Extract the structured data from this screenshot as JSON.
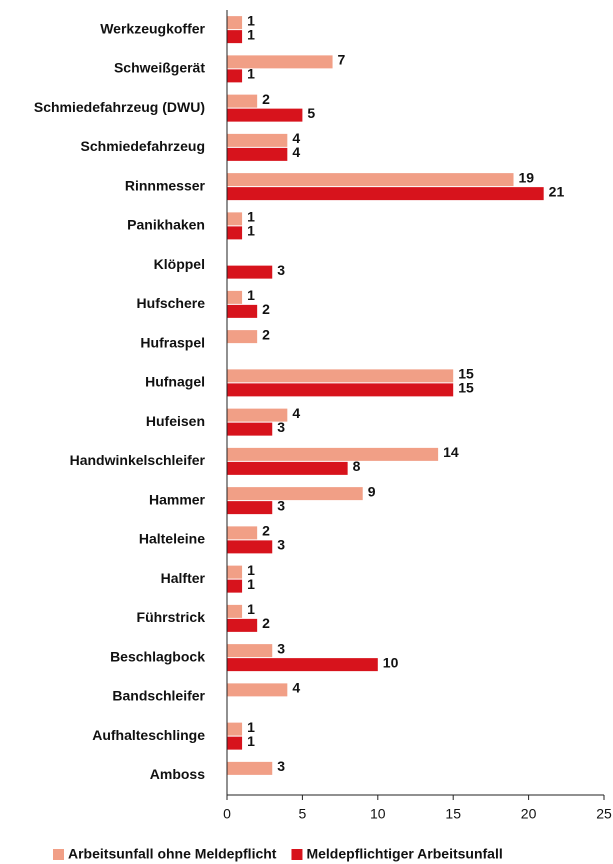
{
  "chart_data": {
    "type": "hbar",
    "categories": [
      "Werkzeugkoffer",
      "Schweißgerät",
      "Schmiedefahrzeug (DWU)",
      "Schmiedefahrzeug",
      "Rinnmesser",
      "Panikhaken",
      "Klöppel",
      "Hufschere",
      "Hufraspel",
      "Hufnagel",
      "Hufeisen",
      "Handwinkelschleifer",
      "Hammer",
      "Halteleine",
      "Halfter",
      "Führstrick",
      "Beschlagbock",
      "Bandschleifer",
      "Aufhalteschlinge",
      "Amboss"
    ],
    "series": [
      {
        "name": "Arbeitsunfall ohne Meldepflicht",
        "color": "#f19f86",
        "values": [
          1,
          7,
          2,
          4,
          19,
          1,
          null,
          1,
          2,
          15,
          4,
          14,
          9,
          2,
          1,
          1,
          3,
          4,
          1,
          3
        ]
      },
      {
        "name": "Meldepflichtiger Arbeitsunfall",
        "color": "#d7131c",
        "values": [
          1,
          1,
          5,
          4,
          21,
          1,
          3,
          2,
          null,
          15,
          3,
          8,
          3,
          3,
          1,
          2,
          10,
          null,
          1,
          null
        ]
      }
    ],
    "xlim": [
      0,
      25
    ],
    "xticks": [
      0,
      5,
      10,
      15,
      20,
      25
    ],
    "legend": "bottom"
  }
}
